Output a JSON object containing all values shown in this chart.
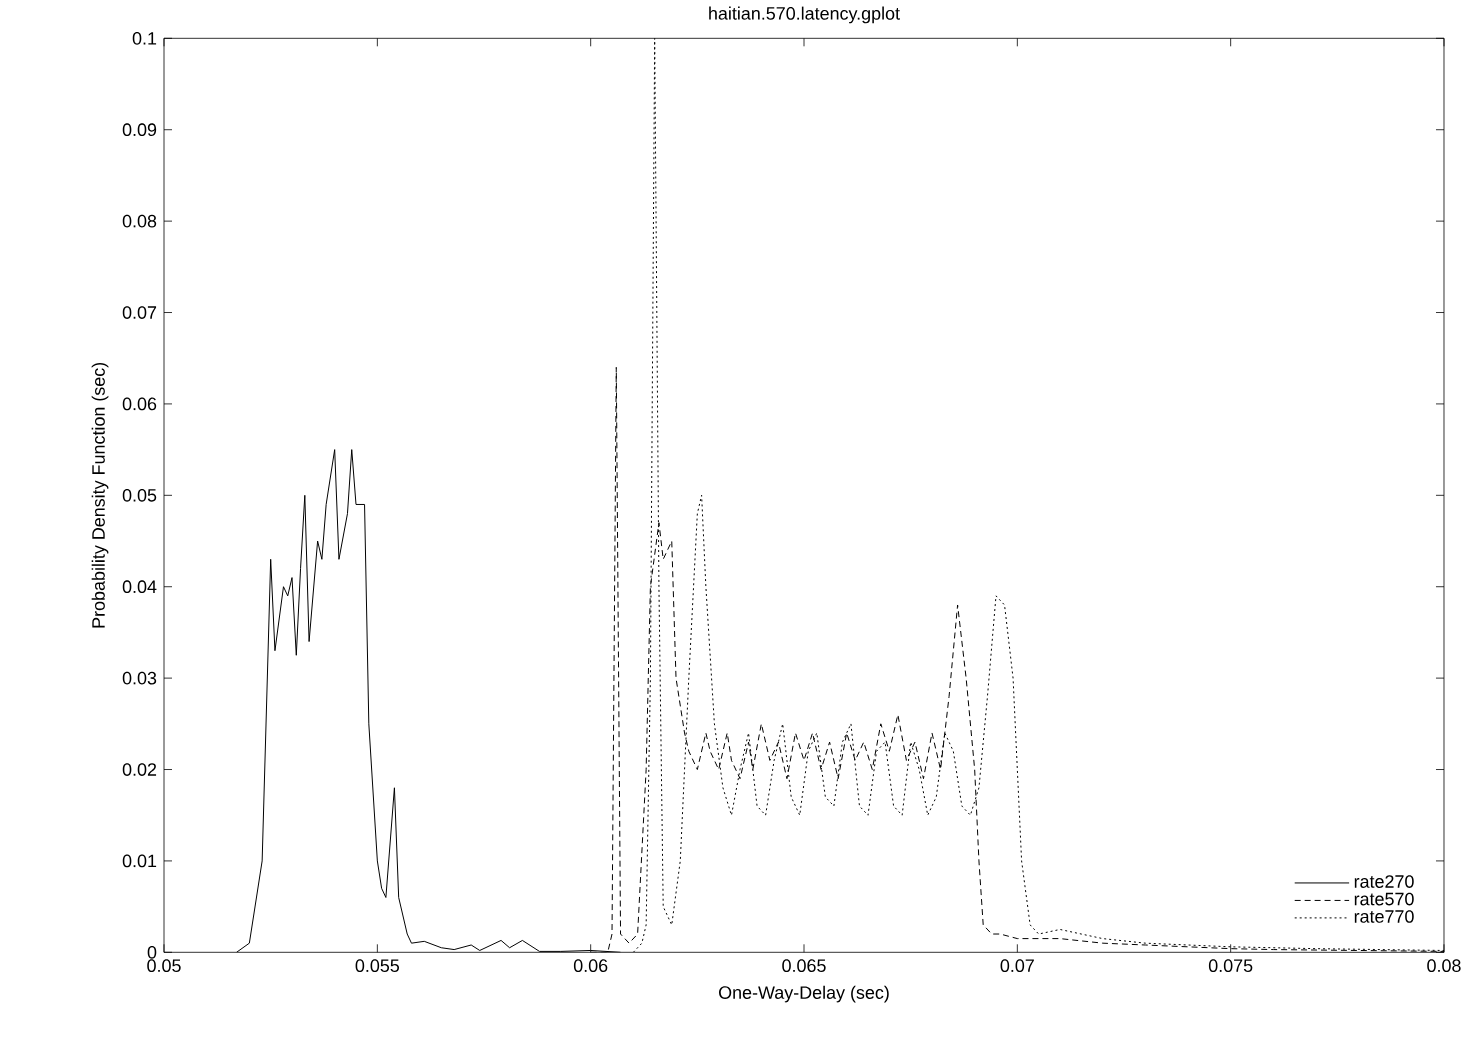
{
  "chart_data": {
    "type": "line",
    "title": "haitian.570.latency.gplot",
    "xlabel": "One-Way-Delay (sec)",
    "ylabel": "Probability Density Function (sec)",
    "xlim": [
      0.05,
      0.08
    ],
    "ylim": [
      0,
      0.1
    ],
    "xticks": [
      0.05,
      0.055,
      0.06,
      0.065,
      0.07,
      0.075,
      0.08
    ],
    "yticks": [
      0,
      0.01,
      0.02,
      0.03,
      0.04,
      0.05,
      0.06,
      0.07,
      0.08,
      0.09,
      0.1
    ],
    "grid": false,
    "legend": "bottom right",
    "marker": "none",
    "series": [
      {
        "name": "rate270",
        "color": "#000000",
        "line_style": "solid",
        "x": [
          0.0517,
          0.052,
          0.0523,
          0.0525,
          0.0526,
          0.0528,
          0.0529,
          0.053,
          0.0531,
          0.0532,
          0.0533,
          0.0534,
          0.0536,
          0.0537,
          0.0538,
          0.054,
          0.0541,
          0.0543,
          0.0544,
          0.0545,
          0.0547,
          0.0548,
          0.055,
          0.0551,
          0.0552,
          0.0554,
          0.0555,
          0.0557,
          0.0558,
          0.0561,
          0.0565,
          0.0568,
          0.0572,
          0.0574,
          0.0579,
          0.0581,
          0.0584,
          0.0588,
          0.0593,
          0.06,
          0.0607
        ],
        "values": [
          0,
          0.001,
          0.01,
          0.043,
          0.033,
          0.04,
          0.039,
          0.041,
          0.0325,
          0.042,
          0.05,
          0.034,
          0.045,
          0.043,
          0.049,
          0.055,
          0.043,
          0.048,
          0.055,
          0.049,
          0.049,
          0.025,
          0.01,
          0.007,
          0.006,
          0.018,
          0.006,
          0.002,
          0.001,
          0.0012,
          0.0005,
          0.0003,
          0.0008,
          0.0002,
          0.0013,
          0.0005,
          0.0013,
          0.0001,
          0.0001,
          0.0002,
          0
        ]
      },
      {
        "name": "rate570",
        "color": "#000000",
        "line_style": "dashed",
        "x": [
          0.06,
          0.0604,
          0.0605,
          0.0606,
          0.0607,
          0.0609,
          0.0611,
          0.0613,
          0.0614,
          0.0616,
          0.0617,
          0.0619,
          0.062,
          0.0622,
          0.0623,
          0.0625,
          0.0627,
          0.0628,
          0.063,
          0.0632,
          0.0633,
          0.0635,
          0.0637,
          0.0638,
          0.064,
          0.0642,
          0.0644,
          0.0646,
          0.0648,
          0.065,
          0.0652,
          0.0654,
          0.0656,
          0.0658,
          0.066,
          0.0662,
          0.0664,
          0.0666,
          0.0668,
          0.067,
          0.0672,
          0.0674,
          0.0676,
          0.0678,
          0.068,
          0.0682,
          0.0684,
          0.0686,
          0.0688,
          0.069,
          0.0691,
          0.0692,
          0.0694,
          0.0696,
          0.07,
          0.071,
          0.072,
          0.073,
          0.074,
          0.075,
          0.076,
          0.078,
          0.08
        ],
        "values": [
          0,
          0,
          0.002,
          0.064,
          0.002,
          0.001,
          0.002,
          0.02,
          0.04,
          0.047,
          0.043,
          0.045,
          0.03,
          0.024,
          0.022,
          0.02,
          0.024,
          0.022,
          0.02,
          0.024,
          0.021,
          0.019,
          0.023,
          0.02,
          0.025,
          0.021,
          0.023,
          0.019,
          0.024,
          0.021,
          0.024,
          0.02,
          0.023,
          0.019,
          0.024,
          0.021,
          0.023,
          0.02,
          0.025,
          0.022,
          0.026,
          0.021,
          0.023,
          0.019,
          0.024,
          0.02,
          0.028,
          0.038,
          0.03,
          0.02,
          0.01,
          0.003,
          0.002,
          0.002,
          0.0015,
          0.0015,
          0.001,
          0.0008,
          0.0006,
          0.0004,
          0.0003,
          0.0002,
          0.0001
        ]
      },
      {
        "name": "rate770",
        "color": "#000000",
        "line_style": "dotted",
        "x": [
          0.061,
          0.0612,
          0.0613,
          0.0614,
          0.0615,
          0.0616,
          0.0617,
          0.0619,
          0.0621,
          0.0623,
          0.0625,
          0.0626,
          0.0627,
          0.0629,
          0.0631,
          0.0633,
          0.0635,
          0.0637,
          0.0639,
          0.0641,
          0.0643,
          0.0645,
          0.0647,
          0.0649,
          0.0651,
          0.0653,
          0.0655,
          0.0657,
          0.0659,
          0.0661,
          0.0663,
          0.0665,
          0.0667,
          0.0669,
          0.0671,
          0.0673,
          0.0675,
          0.0677,
          0.0679,
          0.0681,
          0.0683,
          0.0685,
          0.0687,
          0.0689,
          0.0691,
          0.0693,
          0.0695,
          0.0697,
          0.0699,
          0.0701,
          0.0703,
          0.0705,
          0.071,
          0.072,
          0.073,
          0.075,
          0.077,
          0.08
        ],
        "values": [
          0,
          0.001,
          0.003,
          0.03,
          0.1,
          0.04,
          0.005,
          0.003,
          0.01,
          0.03,
          0.048,
          0.05,
          0.04,
          0.025,
          0.018,
          0.015,
          0.02,
          0.024,
          0.016,
          0.015,
          0.021,
          0.025,
          0.017,
          0.015,
          0.022,
          0.024,
          0.017,
          0.016,
          0.023,
          0.025,
          0.016,
          0.015,
          0.022,
          0.023,
          0.016,
          0.015,
          0.023,
          0.02,
          0.015,
          0.017,
          0.024,
          0.022,
          0.016,
          0.015,
          0.018,
          0.028,
          0.039,
          0.038,
          0.03,
          0.01,
          0.003,
          0.002,
          0.0025,
          0.0015,
          0.001,
          0.0006,
          0.0004,
          0.0002
        ]
      }
    ]
  }
}
